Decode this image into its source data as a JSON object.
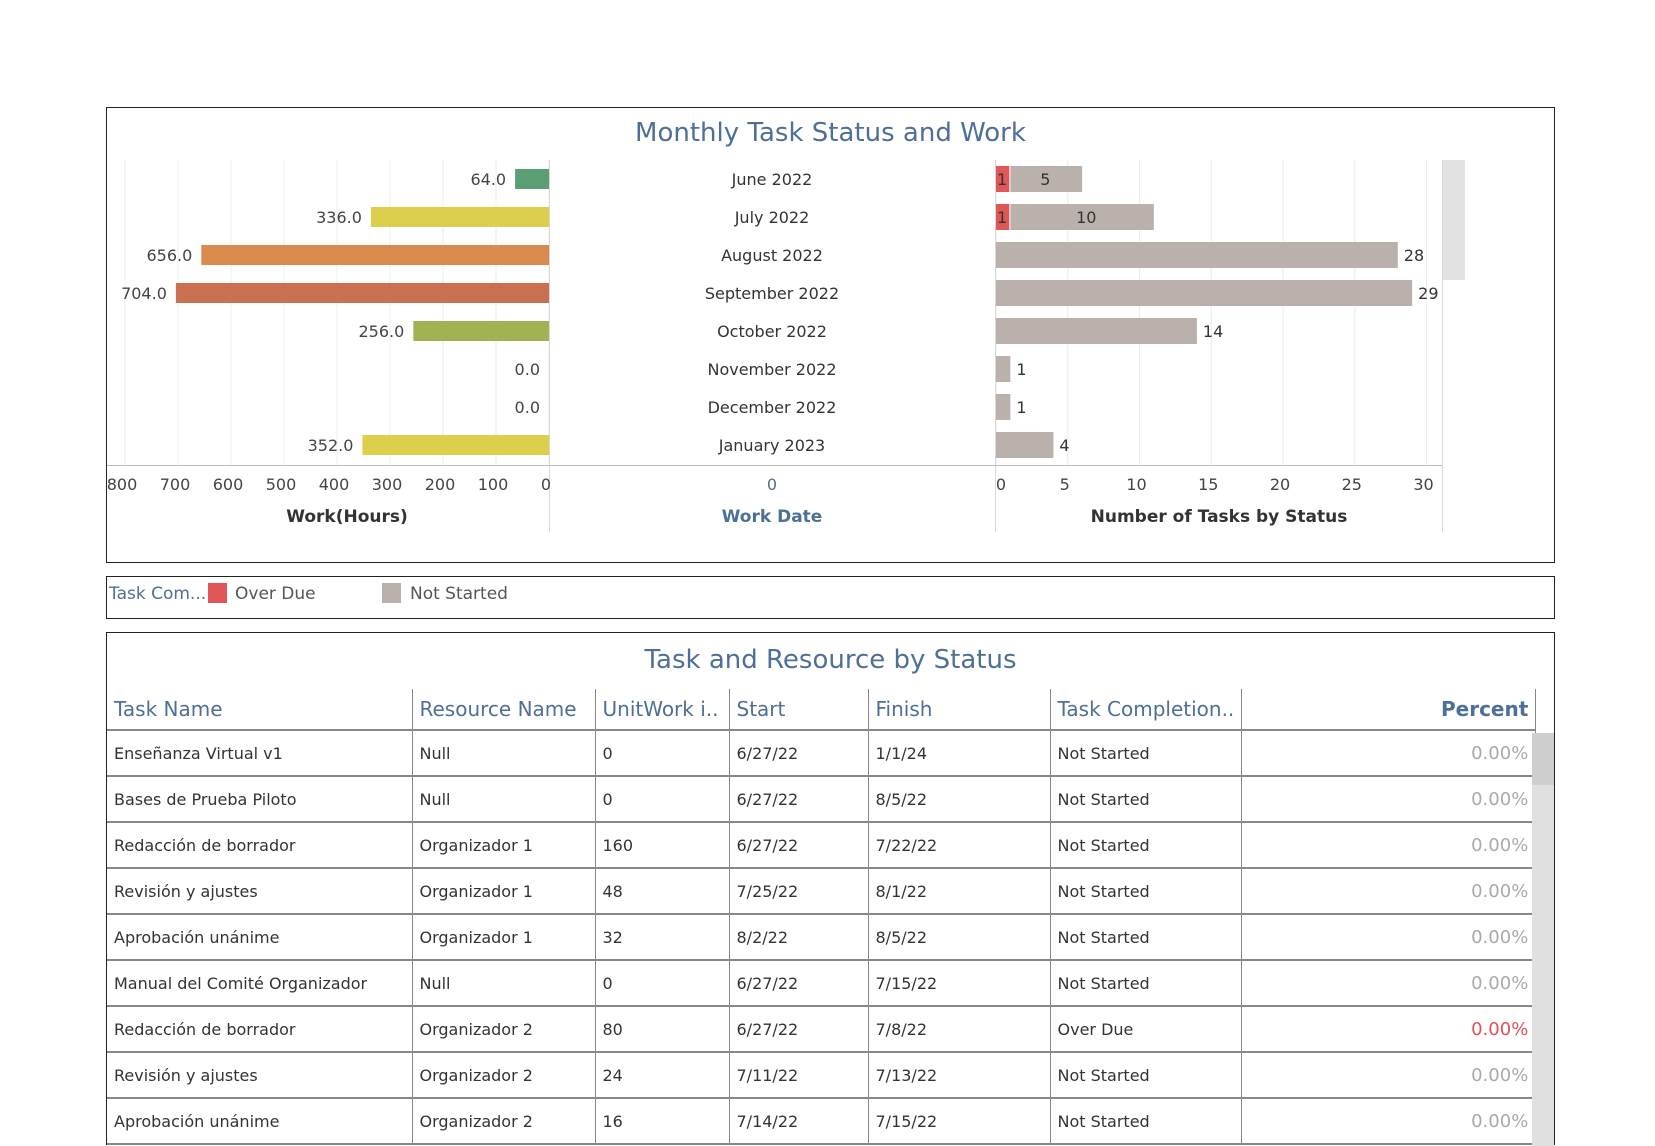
{
  "colors": {
    "over_due": "#e05757",
    "not_started": "#bab0ac",
    "title": "#4e6f96"
  },
  "dashboard": {
    "chart_title": "Monthly Task Status and Work",
    "table_title": "Task and Resource by Status"
  },
  "chart_data": [
    {
      "type": "bar",
      "orientation": "horizontal",
      "categories": [
        "June 2022",
        "July 2022",
        "August 2022",
        "September 2022",
        "October 2022",
        "November 2022",
        "December 2022",
        "January 2023"
      ],
      "values": [
        64.0,
        336.0,
        656.0,
        704.0,
        256.0,
        0.0,
        0.0,
        352.0
      ],
      "value_labels": [
        "64.0",
        "336.0",
        "656.0",
        "704.0",
        "256.0",
        "0.0",
        "0.0",
        "352.0"
      ],
      "bar_colors": [
        "#5a9e74",
        "#dccf4b",
        "#d98a4c",
        "#c8704f",
        "#9fb352",
        "#9fb352",
        "#9fb352",
        "#dccf4b"
      ],
      "xlabel": "Work(Hours)",
      "xlim": [
        0,
        800
      ],
      "x_reversed": true,
      "x_ticks": [
        800,
        700,
        600,
        500,
        400,
        300,
        200,
        100,
        0
      ],
      "grid": true
    },
    {
      "type": "table",
      "ylabel_header": "Work Date",
      "axis_tick": "0",
      "rows": [
        "June 2022",
        "July 2022",
        "August 2022",
        "September 2022",
        "October 2022",
        "November 2022",
        "December 2022",
        "January 2023"
      ]
    },
    {
      "type": "bar",
      "orientation": "horizontal",
      "stacked": true,
      "categories": [
        "June 2022",
        "July 2022",
        "August 2022",
        "September 2022",
        "October 2022",
        "November 2022",
        "December 2022",
        "January 2023"
      ],
      "series": [
        {
          "name": "Over Due",
          "values": [
            1,
            1,
            0,
            0,
            0,
            0,
            0,
            0
          ]
        },
        {
          "name": "Not Started",
          "values": [
            5,
            10,
            28,
            29,
            14,
            1,
            1,
            4
          ]
        }
      ],
      "xlabel": "Number of Tasks by Status",
      "xlim": [
        0,
        31
      ],
      "x_ticks": [
        0,
        5,
        10,
        15,
        20,
        25,
        30
      ],
      "grid": true
    }
  ],
  "legend": {
    "title": "Task Com...",
    "items": [
      {
        "label": "Over Due",
        "color": "#e05757"
      },
      {
        "label": "Not Started",
        "color": "#bab0ac"
      }
    ]
  },
  "table": {
    "columns": [
      "Task Name",
      "Resource Name",
      "UnitWork i..",
      "Start",
      "Finish",
      "Task Completion..",
      "Percent"
    ],
    "rows": [
      [
        "Enseñanza Virtual v1",
        "Null",
        "0",
        "6/27/22",
        "1/1/24",
        "Not Started",
        "0.00%"
      ],
      [
        "Bases de Prueba Piloto",
        "Null",
        "0",
        "6/27/22",
        "8/5/22",
        "Not Started",
        "0.00%"
      ],
      [
        "Redacción de borrador",
        "Organizador 1",
        "160",
        "6/27/22",
        "7/22/22",
        "Not Started",
        "0.00%"
      ],
      [
        "Revisión y ajustes",
        "Organizador 1",
        "48",
        "7/25/22",
        "8/1/22",
        "Not Started",
        "0.00%"
      ],
      [
        "Aprobación unánime",
        "Organizador 1",
        "32",
        "8/2/22",
        "8/5/22",
        "Not Started",
        "0.00%"
      ],
      [
        "Manual del Comité Organizador",
        "Null",
        "0",
        "6/27/22",
        "7/15/22",
        "Not Started",
        "0.00%"
      ],
      [
        "Redacción de borrador",
        "Organizador 2",
        "80",
        "6/27/22",
        "7/8/22",
        "Over Due",
        "0.00%"
      ],
      [
        "Revisión y ajustes",
        "Organizador 2",
        "24",
        "7/11/22",
        "7/13/22",
        "Not Started",
        "0.00%"
      ],
      [
        "Aprobación unánime",
        "Organizador 2",
        "16",
        "7/14/22",
        "7/15/22",
        "Not Started",
        "0.00%"
      ]
    ]
  }
}
